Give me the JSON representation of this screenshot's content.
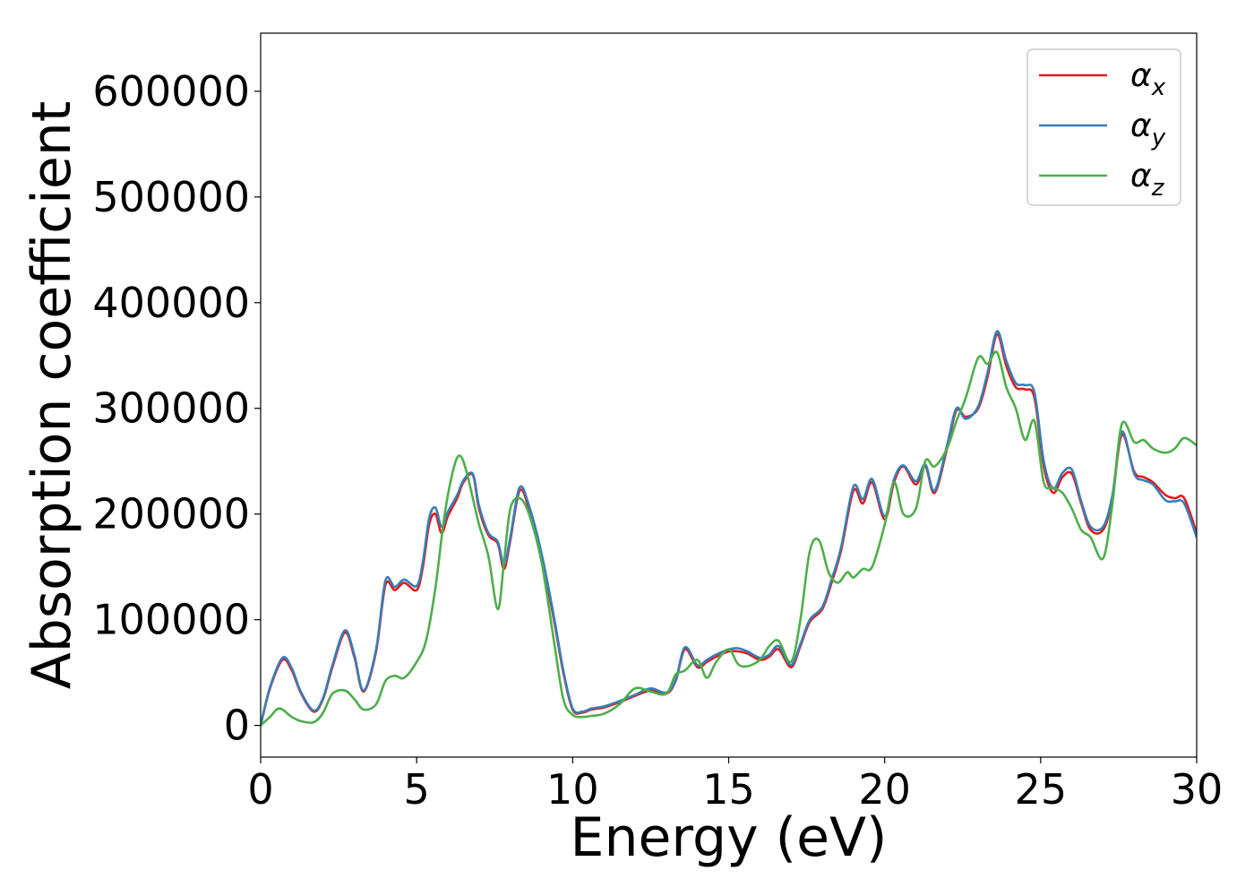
{
  "chart_data": {
    "type": "line",
    "xlabel": "Energy (eV)",
    "ylabel": "Absorption coefficient",
    "xlim": [
      0,
      30
    ],
    "ylim": [
      -30000,
      655000
    ],
    "xticks": [
      0,
      5,
      10,
      15,
      20,
      25,
      30
    ],
    "yticks": [
      0,
      100000,
      200000,
      300000,
      400000,
      500000,
      600000
    ],
    "grid": false,
    "legend_position": "top-right",
    "series": [
      {
        "name": "αx",
        "base": "α",
        "sub": "x",
        "color": "#e41a1c",
        "x": [
          0,
          0.3,
          0.7,
          1.0,
          1.3,
          1.7,
          2.0,
          2.3,
          2.7,
          3.0,
          3.3,
          3.7,
          4.0,
          4.3,
          4.6,
          5.0,
          5.2,
          5.4,
          5.6,
          5.8,
          6.0,
          6.3,
          6.5,
          6.8,
          7.0,
          7.3,
          7.6,
          7.8,
          8.0,
          8.3,
          8.6,
          9.0,
          9.4,
          9.7,
          10.0,
          10.3,
          10.6,
          11.0,
          11.5,
          12.0,
          12.5,
          13.0,
          13.3,
          13.6,
          14.0,
          14.3,
          14.6,
          15.0,
          15.3,
          15.6,
          16.0,
          16.3,
          16.6,
          17.0,
          17.3,
          17.6,
          18.0,
          18.3,
          18.6,
          19.0,
          19.3,
          19.6,
          20.0,
          20.3,
          20.6,
          21.0,
          21.3,
          21.6,
          22.0,
          22.3,
          22.6,
          23.0,
          23.3,
          23.6,
          23.9,
          24.2,
          24.5,
          24.8,
          25.1,
          25.4,
          25.7,
          26.0,
          26.3,
          26.6,
          27.0,
          27.3,
          27.6,
          28.0,
          28.3,
          28.6,
          29.0,
          29.3,
          29.6,
          30.0
        ],
        "values": [
          0,
          35000,
          62000,
          52000,
          30000,
          13000,
          25000,
          55000,
          88000,
          65000,
          32000,
          70000,
          133000,
          128000,
          135000,
          128000,
          150000,
          190000,
          200000,
          182000,
          198000,
          215000,
          230000,
          237000,
          205000,
          180000,
          172000,
          148000,
          175000,
          222000,
          205000,
          160000,
          100000,
          50000,
          15000,
          12000,
          15000,
          17000,
          22000,
          28000,
          33000,
          30000,
          42000,
          72000,
          55000,
          60000,
          65000,
          70000,
          70000,
          68000,
          62000,
          65000,
          72000,
          55000,
          75000,
          98000,
          110000,
          135000,
          165000,
          222000,
          210000,
          230000,
          195000,
          230000,
          245000,
          228000,
          245000,
          220000,
          262000,
          298000,
          292000,
          300000,
          330000,
          370000,
          340000,
          320000,
          318000,
          310000,
          245000,
          220000,
          235000,
          238000,
          210000,
          185000,
          185000,
          215000,
          275000,
          240000,
          235000,
          230000,
          218000,
          215000,
          215000,
          182000
        ]
      },
      {
        "name": "αy",
        "base": "α",
        "sub": "y",
        "color": "#377eb8",
        "x": [
          0,
          0.3,
          0.7,
          1.0,
          1.3,
          1.7,
          2.0,
          2.3,
          2.7,
          3.0,
          3.3,
          3.7,
          4.0,
          4.3,
          4.6,
          5.0,
          5.2,
          5.4,
          5.6,
          5.8,
          6.0,
          6.3,
          6.5,
          6.8,
          7.0,
          7.3,
          7.6,
          7.8,
          8.0,
          8.3,
          8.6,
          9.0,
          9.4,
          9.7,
          10.0,
          10.3,
          10.6,
          11.0,
          11.5,
          12.0,
          12.5,
          13.0,
          13.3,
          13.6,
          14.0,
          14.3,
          14.6,
          15.0,
          15.3,
          15.6,
          16.0,
          16.3,
          16.6,
          17.0,
          17.3,
          17.6,
          18.0,
          18.3,
          18.6,
          19.0,
          19.3,
          19.6,
          20.0,
          20.3,
          20.6,
          21.0,
          21.3,
          21.6,
          22.0,
          22.3,
          22.6,
          23.0,
          23.3,
          23.6,
          23.9,
          24.2,
          24.5,
          24.8,
          25.1,
          25.4,
          25.7,
          26.0,
          26.3,
          26.6,
          27.0,
          27.3,
          27.6,
          28.0,
          28.3,
          28.6,
          29.0,
          29.3,
          29.6,
          30.0
        ],
        "values": [
          0,
          36000,
          64000,
          54000,
          31000,
          14000,
          26000,
          57000,
          90000,
          67000,
          33000,
          72000,
          137000,
          131000,
          138000,
          132000,
          155000,
          196000,
          206000,
          188000,
          202000,
          218000,
          232000,
          238000,
          208000,
          182000,
          174000,
          152000,
          178000,
          225000,
          208000,
          163000,
          103000,
          52000,
          16000,
          13000,
          16000,
          18000,
          23000,
          29000,
          35000,
          31000,
          43000,
          74000,
          57000,
          62000,
          67000,
          72000,
          73000,
          70000,
          64000,
          67000,
          75000,
          57000,
          77000,
          100000,
          112000,
          138000,
          168000,
          226000,
          214000,
          233000,
          198000,
          233000,
          246000,
          231000,
          247000,
          222000,
          265000,
          300000,
          290000,
          302000,
          334000,
          373000,
          345000,
          324000,
          322000,
          315000,
          250000,
          224000,
          239000,
          242000,
          212000,
          188000,
          188000,
          218000,
          278000,
          238000,
          232000,
          228000,
          213000,
          212000,
          210000,
          178000
        ]
      },
      {
        "name": "αz",
        "base": "α",
        "sub": "z",
        "color": "#4daf4a",
        "x": [
          0,
          0.3,
          0.6,
          1.0,
          1.3,
          1.7,
          2.0,
          2.3,
          2.7,
          3.0,
          3.3,
          3.7,
          4.0,
          4.3,
          4.6,
          5.0,
          5.3,
          5.6,
          5.9,
          6.2,
          6.4,
          6.6,
          6.8,
          7.0,
          7.3,
          7.6,
          7.8,
          8.0,
          8.3,
          8.6,
          9.0,
          9.4,
          9.7,
          10.0,
          10.3,
          10.6,
          11.0,
          11.5,
          12.0,
          12.5,
          13.0,
          13.3,
          13.6,
          14.0,
          14.3,
          14.6,
          15.0,
          15.3,
          15.6,
          16.0,
          16.3,
          16.6,
          17.0,
          17.3,
          17.6,
          17.9,
          18.2,
          18.5,
          18.8,
          19.0,
          19.3,
          19.6,
          20.0,
          20.3,
          20.6,
          21.0,
          21.3,
          21.6,
          22.0,
          22.3,
          22.6,
          23.0,
          23.3,
          23.6,
          23.9,
          24.2,
          24.5,
          24.8,
          25.1,
          25.4,
          25.7,
          26.0,
          26.3,
          26.6,
          27.0,
          27.3,
          27.6,
          28.0,
          28.3,
          28.6,
          29.0,
          29.3,
          29.6,
          30.0
        ],
        "values": [
          0,
          8000,
          16000,
          8000,
          4000,
          3000,
          12000,
          30000,
          33000,
          25000,
          15000,
          20000,
          42000,
          47000,
          45000,
          60000,
          80000,
          130000,
          200000,
          245000,
          255000,
          240000,
          215000,
          190000,
          160000,
          110000,
          155000,
          205000,
          215000,
          200000,
          155000,
          80000,
          25000,
          10000,
          8000,
          9000,
          11000,
          20000,
          35000,
          32000,
          30000,
          48000,
          52000,
          62000,
          45000,
          60000,
          72000,
          58000,
          56000,
          62000,
          75000,
          80000,
          60000,
          100000,
          165000,
          175000,
          145000,
          135000,
          145000,
          140000,
          148000,
          150000,
          190000,
          230000,
          200000,
          205000,
          250000,
          245000,
          262000,
          288000,
          310000,
          348000,
          342000,
          353000,
          320000,
          300000,
          270000,
          288000,
          230000,
          225000,
          220000,
          205000,
          185000,
          178000,
          158000,
          210000,
          285000,
          268000,
          270000,
          262000,
          258000,
          262000,
          272000,
          265000
        ]
      }
    ]
  }
}
